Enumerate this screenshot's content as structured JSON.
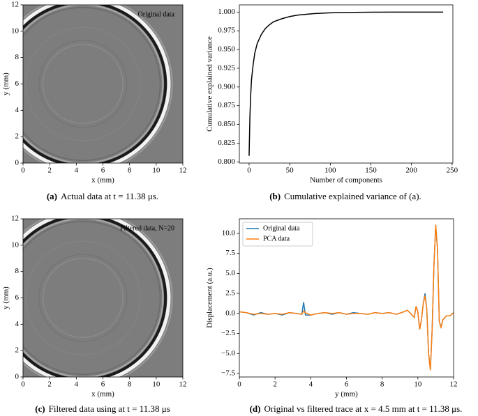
{
  "chart_data": [
    {
      "type": "image",
      "annotation": "Original data",
      "xlabel": "x (mm)",
      "ylabel": "y (mm)",
      "xlim": [
        0,
        12
      ],
      "ylim": [
        0,
        12
      ],
      "xticks": [
        0,
        2,
        4,
        6,
        8,
        10,
        12
      ],
      "yticks": [
        0,
        2,
        4,
        6,
        8,
        10,
        12
      ],
      "caption": {
        "label": "(a)",
        "text": "Actual data at t = 11.38 μs."
      }
    },
    {
      "type": "line",
      "xlabel": "Number of components",
      "ylabel": "Cumulative explained variance",
      "xlim": [
        -12,
        251
      ],
      "ylim": [
        0.7984,
        1.0096
      ],
      "xticks": [
        0,
        50,
        100,
        150,
        200,
        250
      ],
      "yticks": [
        {
          "value": 0.8,
          "label": "0.800"
        },
        {
          "value": 0.825,
          "label": "0.825"
        },
        {
          "value": 0.85,
          "label": "0.850"
        },
        {
          "value": 0.875,
          "label": "0.875"
        },
        {
          "value": 0.9,
          "label": "0.900"
        },
        {
          "value": 0.925,
          "label": "0.925"
        },
        {
          "value": 0.95,
          "label": "0.950"
        },
        {
          "value": 0.975,
          "label": "0.975"
        },
        {
          "value": 1.0,
          "label": "1.000"
        }
      ],
      "x": [
        0,
        1,
        2,
        3,
        5,
        7,
        10,
        15,
        20,
        25,
        30,
        40,
        50,
        60,
        80,
        100,
        125,
        150,
        175,
        200,
        239
      ],
      "series": [
        {
          "color": "#000000",
          "values": [
            0.808,
            0.86,
            0.89,
            0.91,
            0.93,
            0.945,
            0.958,
            0.97,
            0.978,
            0.983,
            0.987,
            0.991,
            0.994,
            0.996,
            0.998,
            0.999,
            0.9995,
            0.9998,
            0.9999,
            1.0,
            1.0
          ]
        }
      ],
      "caption": {
        "label": "(b)",
        "text": "Cumulative explained variance of (a)."
      }
    },
    {
      "type": "image",
      "annotation": "Filtered data, N=20",
      "xlabel": "x (mm)",
      "ylabel": "y (mm)",
      "xlim": [
        0,
        12
      ],
      "ylim": [
        0,
        12
      ],
      "xticks": [
        0,
        2,
        4,
        6,
        8,
        10,
        12
      ],
      "yticks": [
        0,
        2,
        4,
        6,
        8,
        10,
        12
      ],
      "caption": {
        "label": "(c)",
        "text": "Filtered data using at t = 11.38 μs"
      }
    },
    {
      "type": "line",
      "xlabel": "y (mm)",
      "ylabel": "Displacement (a.u.)",
      "legend": "upper left",
      "xlim": [
        0,
        12
      ],
      "ylim": [
        -7.94,
        11.83
      ],
      "xticks": [
        0,
        2,
        4,
        6,
        8,
        10,
        12
      ],
      "yticks": [
        {
          "value": -7.5,
          "label": "−7.5"
        },
        {
          "value": -5,
          "label": "−5.0"
        },
        {
          "value": -2.5,
          "label": "−2.5"
        },
        {
          "value": 0,
          "label": "0.0"
        },
        {
          "value": 2.5,
          "label": "2.5"
        },
        {
          "value": 5,
          "label": "5.0"
        },
        {
          "value": 7.5,
          "label": "7.5"
        },
        {
          "value": 10,
          "label": "10.0"
        }
      ],
      "x": [
        0,
        0.4,
        0.8,
        1.2,
        1.6,
        2,
        2.4,
        2.8,
        3.2,
        3.5,
        3.6,
        3.7,
        4,
        4.4,
        4.8,
        5.2,
        5.6,
        6,
        6.4,
        6.8,
        7.2,
        7.6,
        8,
        8.4,
        8.8,
        9.2,
        9.4,
        9.6,
        9.8,
        9.9,
        10,
        10.1,
        10.2,
        10.3,
        10.4,
        10.5,
        10.6,
        10.7,
        10.8,
        10.9,
        11,
        11.1,
        11.2,
        11.3,
        11.4,
        11.6,
        11.8,
        12
      ],
      "series": [
        {
          "name": "Original data",
          "color": "#1f77b4",
          "values": [
            0.2,
            0.1,
            -0.2,
            0.1,
            -0.1,
            0,
            -0.2,
            0.1,
            0,
            -0.1,
            1.4,
            -0.2,
            -0.2,
            0,
            0.1,
            -0.1,
            0.1,
            -0.1,
            0.1,
            0,
            -0.1,
            0.1,
            0,
            0.1,
            -0.1,
            0.2,
            0.4,
            0,
            -0.5,
            0.9,
            0.2,
            -2.0,
            -0.8,
            1.2,
            2.5,
            0.5,
            -5.0,
            -7.0,
            -2.0,
            6.0,
            11.0,
            8.0,
            -1.0,
            -1.7,
            -0.8,
            -0.3,
            -0.3,
            0.1
          ]
        },
        {
          "name": "PCA data",
          "color": "#ff7f0e",
          "values": [
            0.2,
            0.1,
            -0.1,
            0,
            -0.1,
            0,
            -0.1,
            0.1,
            0,
            -0.1,
            0.3,
            0.1,
            -0.2,
            0,
            0.1,
            0,
            0.1,
            -0.1,
            0,
            0,
            -0.1,
            0.1,
            0,
            0.1,
            -0.1,
            0.2,
            0.4,
            0,
            -0.5,
            0.9,
            0.2,
            -2.0,
            -0.8,
            1.2,
            2.2,
            0.5,
            -5.0,
            -7.1,
            -2.0,
            6.0,
            11.1,
            8.0,
            -1.0,
            -1.8,
            -0.8,
            -0.3,
            -0.3,
            0.1
          ]
        }
      ],
      "caption": {
        "label": "(d)",
        "text": "Original vs filtered trace at x = 4.5 mm at t = 11.38 μs."
      }
    }
  ]
}
